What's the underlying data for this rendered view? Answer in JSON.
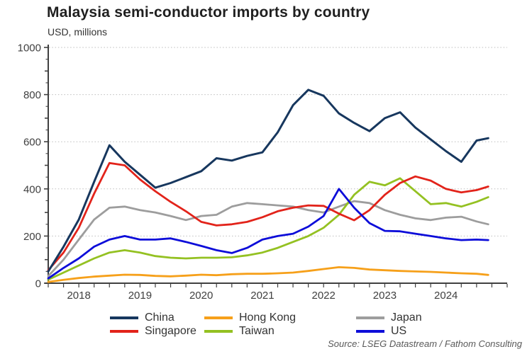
{
  "title": "Malaysia semi-conductor imports by country",
  "subtitle": "USD, millions",
  "source": "Source: LSEG Datastream / Fathom Consulting",
  "colors": {
    "axis": "#404040",
    "grid": "#bdbdbd",
    "tick_text": "#404040",
    "title_text": "#1f1f1f",
    "source_text": "#595959"
  },
  "chart_data": {
    "type": "line",
    "title": "Malaysia semi-conductor imports by country",
    "ylabel": "USD, millions",
    "xlim": [
      2017.5,
      2025.0
    ],
    "ylim": [
      0,
      1000
    ],
    "yticks": [
      0,
      200,
      400,
      600,
      800,
      1000
    ],
    "y_minor_tick_step": 50,
    "x_minor_tick_step": 0.25,
    "xticklabels": [
      "2018",
      "2019",
      "2020",
      "2021",
      "2022",
      "2023",
      "2024"
    ],
    "xticklabel_positions": [
      2018,
      2019,
      2020,
      2021,
      2022,
      2023,
      2024
    ],
    "grid": "dotted horizontal gridlines at labeled y ticks",
    "legend_position": "bottom",
    "x": [
      2017.5,
      2017.75,
      2018,
      2018.25,
      2018.5,
      2018.75,
      2019,
      2019.25,
      2019.5,
      2019.75,
      2020,
      2020.25,
      2020.5,
      2020.75,
      2021,
      2021.25,
      2021.5,
      2021.75,
      2022,
      2022.25,
      2022.5,
      2022.75,
      2023,
      2023.25,
      2023.5,
      2023.75,
      2024,
      2024.25,
      2024.5,
      2024.69
    ],
    "series": [
      {
        "name": "China",
        "color": "#17375e",
        "width": 3,
        "values": [
          50,
          155,
          270,
          430,
          585,
          515,
          460,
          405,
          425,
          450,
          475,
          530,
          520,
          540,
          555,
          640,
          755,
          820,
          795,
          720,
          680,
          645,
          700,
          725,
          660,
          610,
          560,
          515,
          605,
          615
        ]
      },
      {
        "name": "Singapore",
        "color": "#e2231a",
        "width": 2.8,
        "values": [
          55,
          130,
          235,
          380,
          510,
          500,
          440,
          390,
          345,
          305,
          260,
          245,
          250,
          260,
          280,
          305,
          320,
          330,
          328,
          295,
          267,
          310,
          375,
          425,
          453,
          435,
          400,
          385,
          395,
          410
        ]
      },
      {
        "name": "Hong Kong",
        "color": "#f6a01a",
        "width": 2.8,
        "values": [
          5,
          14,
          22,
          28,
          32,
          36,
          35,
          31,
          29,
          32,
          36,
          34,
          38,
          40,
          40,
          42,
          45,
          52,
          60,
          68,
          65,
          58,
          55,
          52,
          50,
          48,
          45,
          42,
          40,
          35
        ]
      },
      {
        "name": "Taiwan",
        "color": "#94c122",
        "width": 2.8,
        "values": [
          15,
          45,
          75,
          105,
          130,
          140,
          130,
          115,
          108,
          105,
          108,
          108,
          110,
          118,
          130,
          150,
          175,
          200,
          235,
          290,
          375,
          430,
          415,
          445,
          390,
          335,
          340,
          325,
          345,
          365
        ]
      },
      {
        "name": "Japan",
        "color": "#9d9d9d",
        "width": 2.8,
        "values": [
          30,
          100,
          185,
          270,
          320,
          325,
          310,
          300,
          285,
          268,
          285,
          290,
          325,
          340,
          335,
          330,
          325,
          310,
          300,
          325,
          348,
          340,
          310,
          290,
          275,
          268,
          278,
          282,
          262,
          250
        ]
      },
      {
        "name": "US",
        "color": "#0d0dd9",
        "width": 2.8,
        "values": [
          20,
          65,
          105,
          155,
          185,
          200,
          185,
          185,
          190,
          175,
          158,
          140,
          128,
          150,
          185,
          200,
          210,
          240,
          285,
          400,
          320,
          255,
          222,
          220,
          210,
          200,
          190,
          183,
          185,
          183
        ]
      }
    ],
    "draw_order": [
      4,
      2,
      3,
      1,
      0,
      5
    ],
    "legend_columns": [
      [
        0,
        1
      ],
      [
        2,
        3
      ],
      [
        4,
        5
      ]
    ],
    "legend_column_x": [
      155,
      288,
      502
    ],
    "legend_row_y": [
      3,
      22
    ]
  }
}
